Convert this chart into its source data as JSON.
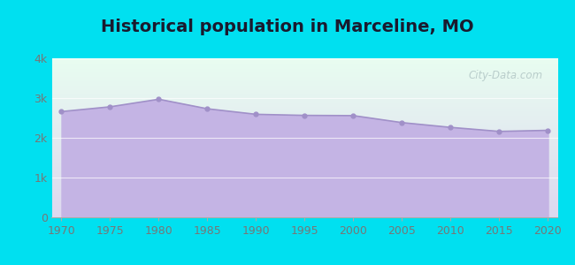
{
  "title": "Historical population in Marceline, MO",
  "years": [
    1970,
    1975,
    1980,
    1985,
    1990,
    1995,
    2000,
    2005,
    2010,
    2015,
    2020
  ],
  "population": [
    2660,
    2780,
    2970,
    2730,
    2591,
    2564,
    2558,
    2382,
    2262,
    2161,
    2188
  ],
  "line_color": "#a090c8",
  "fill_color": "#c4b4e4",
  "fill_alpha": 1.0,
  "marker_color": "#a090c8",
  "bg_outer": "#00e0f0",
  "bg_plot_top": "#e8fdf0",
  "bg_plot_bottom": "#ddd8ef",
  "title_fontsize": 14,
  "tick_fontsize": 9,
  "ylim": [
    0,
    4000
  ],
  "yticks": [
    0,
    1000,
    2000,
    3000,
    4000
  ],
  "ytick_labels": [
    "0",
    "1k",
    "2k",
    "3k",
    "4k"
  ],
  "watermark": "City-Data.com"
}
